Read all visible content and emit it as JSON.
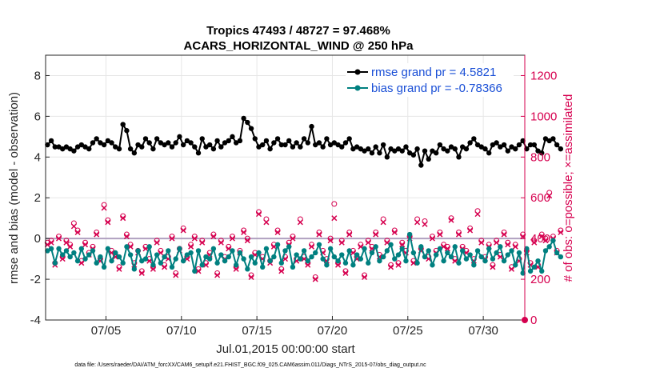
{
  "chart_data": {
    "type": "line",
    "title": "Tropics 47493 / 48727 = 97.468%",
    "subtitle": "ACARS_HORIZONTAL_WIND @ 250 hPa",
    "xlabel": "Jul.01,2015 00:00:00 start",
    "ylabel_left": "rmse and bias (model - observation)",
    "ylabel_right": "# of obs: o=possible; ×=assimilated",
    "footnote": "data file: /Users/raeder/DAI/ATM_forcXX/CAM6_setup/f.e21.FHIST_BGC.f09_025.CAM6assim.011/Diags_NTrS_2015-07/obs_diag_output.nc",
    "xlim": [
      1,
      32.75
    ],
    "ylim_left": [
      -4,
      9
    ],
    "ylim_right": [
      0,
      1300
    ],
    "x_ticks": [
      5,
      10,
      15,
      20,
      25,
      30
    ],
    "x_tick_labels": [
      "07/05",
      "07/10",
      "07/15",
      "07/20",
      "07/25",
      "07/30"
    ],
    "y_ticks_left": [
      -4,
      -2,
      0,
      2,
      4,
      6,
      8
    ],
    "y_ticks_right": [
      0,
      200,
      400,
      600,
      800,
      1000,
      1200
    ],
    "grid": true,
    "legend_position": "top-right",
    "zero_line": 0,
    "colors": {
      "rmse": "#000000",
      "bias": "#008080",
      "obs": "#d6004f",
      "legend_text": "#1a4fd6",
      "zero_line": "#b0a0c0"
    },
    "series": [
      {
        "name": "rmse grand pr = 4.5821",
        "axis": "left",
        "values": [
          4.6,
          4.8,
          4.5,
          4.5,
          4.4,
          4.5,
          4.4,
          4.3,
          4.5,
          4.6,
          4.5,
          4.4,
          4.7,
          4.9,
          4.7,
          4.6,
          4.8,
          4.7,
          4.5,
          4.4,
          5.6,
          5.3,
          4.4,
          4.2,
          4.6,
          4.5,
          4.9,
          4.7,
          4.4,
          4.9,
          4.7,
          4.6,
          4.7,
          4.5,
          4.7,
          5.0,
          4.6,
          4.8,
          4.7,
          4.5,
          4.2,
          4.9,
          4.5,
          4.6,
          4.4,
          4.8,
          4.5,
          4.7,
          4.8,
          5.0,
          4.7,
          4.8,
          5.9,
          5.7,
          5.4,
          4.9,
          4.5,
          4.6,
          4.8,
          4.4,
          4.7,
          4.9,
          4.6,
          4.6,
          4.8,
          4.5,
          4.7,
          4.5,
          4.9,
          4.7,
          5.5,
          4.6,
          4.7,
          4.5,
          4.9,
          4.6,
          4.7,
          4.6,
          4.5,
          4.7,
          4.9,
          4.4,
          4.5,
          4.4,
          4.3,
          4.4,
          4.2,
          4.5,
          4.2,
          4.6,
          4.0,
          4.4,
          4.3,
          4.4,
          4.3,
          4.5,
          4.2,
          4.1,
          4.4,
          3.6,
          4.3,
          3.9,
          4.3,
          4.2,
          4.6,
          4.4,
          4.3,
          4.5,
          4.4,
          4.0,
          4.5,
          4.4,
          4.7,
          4.9,
          4.6,
          4.5,
          4.4,
          4.2,
          4.6,
          4.7,
          4.5,
          4.6,
          4.3,
          4.5,
          4.4,
          4.6,
          4.8,
          4.4,
          4.6,
          4.6,
          4.3,
          4.2,
          4.9,
          4.8,
          4.9,
          4.6,
          4.4
        ]
      },
      {
        "name": "bias grand pr = -0.78366",
        "axis": "left",
        "values": [
          -0.6,
          -0.5,
          -1.2,
          -0.5,
          -0.8,
          -0.6,
          -0.9,
          -0.7,
          -1.1,
          -0.5,
          -1.0,
          -0.8,
          -0.6,
          -1.2,
          -0.9,
          -1.4,
          -0.5,
          -1.1,
          -0.7,
          -0.9,
          -1.2,
          -0.4,
          -0.8,
          -1.5,
          -0.6,
          -1.1,
          -1.0,
          -0.4,
          -1.3,
          -0.8,
          -1.2,
          -0.9,
          -0.6,
          -1.4,
          -1.0,
          -0.5,
          -1.1,
          -0.8,
          -0.7,
          -1.6,
          -0.6,
          -1.3,
          -0.9,
          -1.0,
          -0.5,
          -1.2,
          -0.8,
          -1.1,
          -0.9,
          -0.6,
          -1.3,
          -0.7,
          -1.0,
          -1.5,
          -0.9,
          -1.2,
          -0.7,
          -1.4,
          -0.5,
          -1.1,
          -0.9,
          -0.3,
          -1.2,
          -0.6,
          -0.4,
          -1.4,
          -0.8,
          -1.0,
          -0.6,
          -1.1,
          -0.9,
          -0.7,
          -0.3,
          -1.0,
          -1.3,
          -0.5,
          -0.9,
          -1.1,
          -0.8,
          -1.2,
          -0.6,
          -1.3,
          -0.8,
          -1.0,
          -0.5,
          -1.2,
          -0.7,
          -0.4,
          -1.1,
          -0.9,
          -0.6,
          -0.3,
          -1.0,
          -0.8,
          -0.5,
          -1.1,
          0.2,
          -0.7,
          -1.2,
          -0.4,
          -0.9,
          -0.6,
          -1.3,
          -0.8,
          -0.5,
          -1.1,
          -0.7,
          -0.9,
          -0.4,
          -1.2,
          -0.6,
          -1.0,
          -0.8,
          -1.3,
          -0.6,
          -0.9,
          -1.1,
          -0.5,
          -1.0,
          -0.7,
          -0.4,
          -1.1,
          -0.8,
          -0.6,
          -1.3,
          -0.7,
          -1.7,
          -0.5,
          -1.6,
          -1.4,
          -1.1,
          -1.6,
          -0.6,
          -0.4,
          -0.1,
          -0.7,
          -0.9
        ]
      },
      {
        "name": "obs count (assimilated)",
        "axis": "right",
        "marker": "x",
        "values": [
          370,
          380,
          270,
          400,
          300,
          380,
          360,
          460,
          430,
          280,
          370,
          320,
          350,
          420,
          290,
          550,
          480,
          330,
          310,
          250,
          500,
          410,
          360,
          270,
          330,
          230,
          350,
          290,
          250,
          380,
          330,
          260,
          300,
          400,
          220,
          340,
          440,
          300,
          360,
          400,
          240,
          380,
          270,
          320,
          410,
          220,
          380,
          300,
          350,
          400,
          250,
          330,
          430,
          390,
          210,
          320,
          520,
          300,
          480,
          280,
          360,
          430,
          240,
          300,
          370,
          400,
          290,
          480,
          300,
          270,
          360,
          200,
          420,
          330,
          290,
          390,
          500,
          270,
          380,
          230,
          420,
          330,
          300,
          360,
          210,
          380,
          350,
          420,
          310,
          480,
          380,
          260,
          430,
          270,
          370,
          330,
          400,
          280,
          480,
          340,
          470,
          300,
          400,
          330,
          420,
          360,
          350,
          490,
          290,
          420,
          350,
          330,
          440,
          290,
          520,
          380,
          300,
          360,
          260,
          380,
          310,
          420,
          370,
          250,
          360,
          290,
          410,
          330,
          270,
          380,
          260,
          410,
          390,
          610,
          400,
          330,
          430
        ]
      },
      {
        "name": "obs count (possible)",
        "axis": "right",
        "marker": "o",
        "values": [
          380,
          390,
          280,
          410,
          310,
          390,
          370,
          475,
          440,
          290,
          380,
          330,
          360,
          430,
          300,
          565,
          490,
          340,
          320,
          260,
          510,
          420,
          370,
          280,
          340,
          240,
          360,
          300,
          260,
          390,
          340,
          270,
          310,
          410,
          230,
          350,
          450,
          310,
          370,
          410,
          250,
          390,
          280,
          330,
          420,
          230,
          390,
          310,
          360,
          410,
          260,
          340,
          440,
          400,
          220,
          330,
          530,
          310,
          495,
          290,
          370,
          440,
          250,
          310,
          380,
          410,
          300,
          495,
          310,
          280,
          370,
          210,
          430,
          340,
          300,
          400,
          570,
          280,
          390,
          240,
          430,
          340,
          310,
          370,
          220,
          390,
          360,
          430,
          320,
          495,
          390,
          270,
          440,
          280,
          380,
          340,
          410,
          290,
          495,
          350,
          485,
          310,
          410,
          340,
          430,
          370,
          360,
          500,
          300,
          430,
          360,
          340,
          450,
          300,
          535,
          390,
          310,
          370,
          270,
          390,
          320,
          430,
          380,
          260,
          370,
          300,
          420,
          340,
          280,
          390,
          270,
          420,
          400,
          625,
          410,
          340,
          440
        ]
      }
    ]
  }
}
